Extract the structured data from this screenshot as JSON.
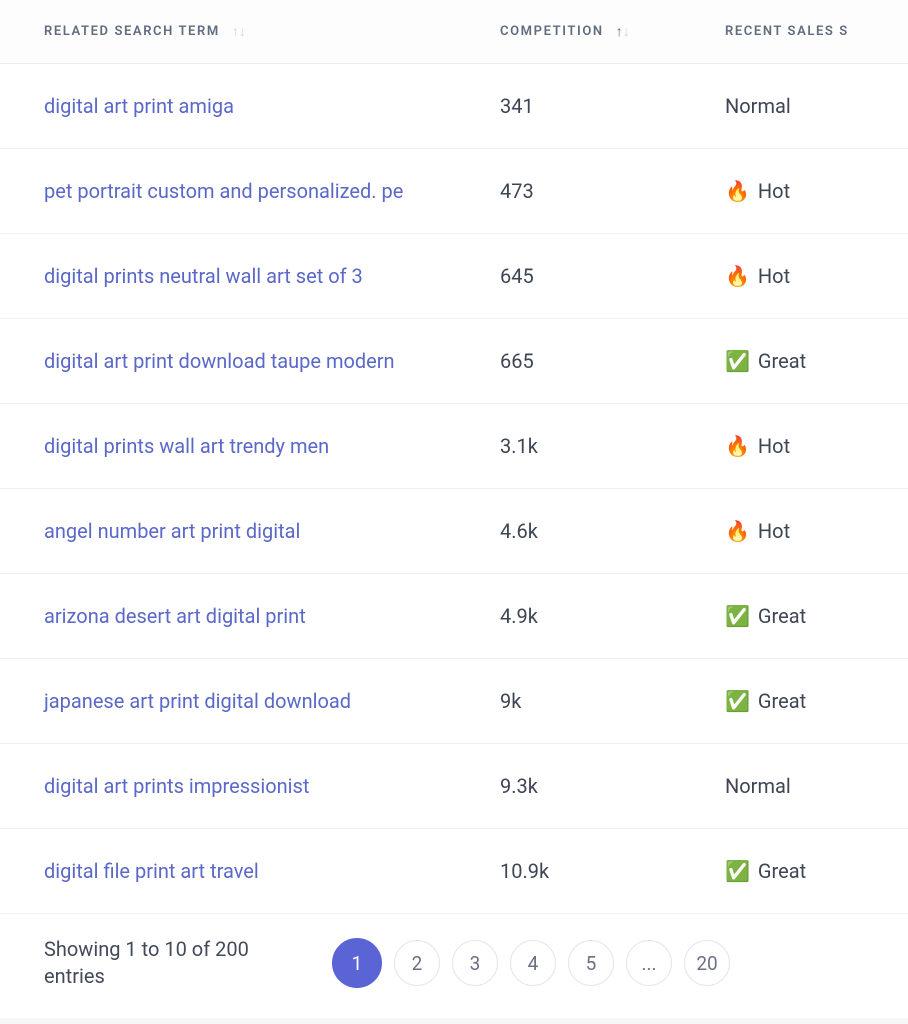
{
  "columns": {
    "term": {
      "label": "RELATED SEARCH TERM",
      "sortable": true,
      "sort_state": "none"
    },
    "competition": {
      "label": "COMPETITION",
      "sortable": true,
      "sort_state": "asc"
    },
    "sales": {
      "label": "RECENT SALES S",
      "sortable": true,
      "sort_state": "none"
    }
  },
  "rows": [
    {
      "term": "digital art print amiga",
      "competition": "341",
      "sales_icon": "",
      "sales_label": "Normal"
    },
    {
      "term": "pet portrait custom and personalized. pe",
      "competition": "473",
      "sales_icon": "🔥",
      "sales_label": "Hot"
    },
    {
      "term": "digital prints neutral wall art set of 3",
      "competition": "645",
      "sales_icon": "🔥",
      "sales_label": "Hot"
    },
    {
      "term": "digital art print download taupe modern",
      "competition": "665",
      "sales_icon": "✅",
      "sales_label": "Great"
    },
    {
      "term": "digital prints wall art trendy men",
      "competition": "3.1k",
      "sales_icon": "🔥",
      "sales_label": "Hot"
    },
    {
      "term": "angel number art print digital",
      "competition": "4.6k",
      "sales_icon": "🔥",
      "sales_label": "Hot"
    },
    {
      "term": "arizona desert art digital print",
      "competition": "4.9k",
      "sales_icon": "✅",
      "sales_label": "Great"
    },
    {
      "term": "japanese art print digital download",
      "competition": "9k",
      "sales_icon": "✅",
      "sales_label": "Great"
    },
    {
      "term": "digital art prints impressionist",
      "competition": "9.3k",
      "sales_icon": "",
      "sales_label": "Normal"
    },
    {
      "term": "digital file print art travel",
      "competition": "10.9k",
      "sales_icon": "✅",
      "sales_label": "Great"
    }
  ],
  "footer": {
    "showing_text": "Showing 1 to 10 of 200 entries"
  },
  "pagination": {
    "pages": [
      {
        "label": "1",
        "active": true
      },
      {
        "label": "2",
        "active": false
      },
      {
        "label": "3",
        "active": false
      },
      {
        "label": "4",
        "active": false
      },
      {
        "label": "5",
        "active": false
      },
      {
        "label": "...",
        "active": false,
        "ellipsis": true
      },
      {
        "label": "20",
        "active": false
      }
    ]
  },
  "colors": {
    "link": "#5a68c8",
    "text": "#3e4654",
    "header_text": "#606b7e",
    "border": "#eef0f3",
    "page_active_bg": "#5b64d4",
    "page_border": "#e3e6ec",
    "background": "#ffffff"
  }
}
